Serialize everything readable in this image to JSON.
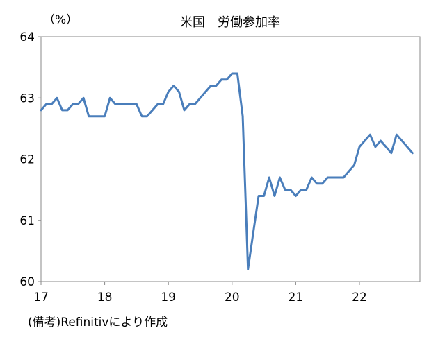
{
  "chart_data": {
    "type": "line",
    "title": "米国　労働参加率",
    "unit_label": "（%）",
    "source_note": "(備考)Refinitivにより作成",
    "x_ticks": [
      "17",
      "18",
      "19",
      "20",
      "21",
      "22"
    ],
    "y_ticks": [
      "64",
      "63",
      "62",
      "61",
      "60"
    ],
    "xlim": [
      2017.0,
      2022.95
    ],
    "ylim": [
      60,
      64
    ],
    "line_color": "#4a7ebb",
    "series": [
      {
        "x": [
          2017.0,
          2017.083,
          2017.167,
          2017.25,
          2017.333,
          2017.417,
          2017.5,
          2017.583,
          2017.667,
          2017.75,
          2017.833,
          2017.917,
          2018.0,
          2018.083,
          2018.167,
          2018.25,
          2018.333,
          2018.417,
          2018.5,
          2018.583,
          2018.667,
          2018.75,
          2018.833,
          2018.917,
          2019.0,
          2019.083,
          2019.167,
          2019.25,
          2019.333,
          2019.417,
          2019.5,
          2019.583,
          2019.667,
          2019.75,
          2019.833,
          2019.917,
          2020.0,
          2020.083,
          2020.167,
          2020.25,
          2020.333,
          2020.417,
          2020.5,
          2020.583,
          2020.667,
          2020.75,
          2020.833,
          2020.917,
          2021.0,
          2021.083,
          2021.167,
          2021.25,
          2021.333,
          2021.417,
          2021.5,
          2021.583,
          2021.667,
          2021.75,
          2021.833,
          2021.917,
          2022.0,
          2022.083,
          2022.167,
          2022.25,
          2022.333,
          2022.417,
          2022.5,
          2022.583,
          2022.667,
          2022.75,
          2022.833
        ],
        "y": [
          62.8,
          62.9,
          62.9,
          63.0,
          62.8,
          62.8,
          62.9,
          62.9,
          63.0,
          62.7,
          62.7,
          62.7,
          62.7,
          63.0,
          62.9,
          62.9,
          62.9,
          62.9,
          62.9,
          62.7,
          62.7,
          62.8,
          62.9,
          62.9,
          63.1,
          63.2,
          63.1,
          62.8,
          62.9,
          62.9,
          63.0,
          63.1,
          63.2,
          63.2,
          63.3,
          63.3,
          63.4,
          63.4,
          62.7,
          60.2,
          60.8,
          61.4,
          61.4,
          61.7,
          61.4,
          61.7,
          61.5,
          61.5,
          61.4,
          61.5,
          61.5,
          61.7,
          61.6,
          61.6,
          61.7,
          61.7,
          61.7,
          61.7,
          61.8,
          61.9,
          62.2,
          62.3,
          62.4,
          62.2,
          62.3,
          62.2,
          62.1,
          62.4,
          62.3,
          62.2,
          62.1
        ]
      }
    ]
  }
}
